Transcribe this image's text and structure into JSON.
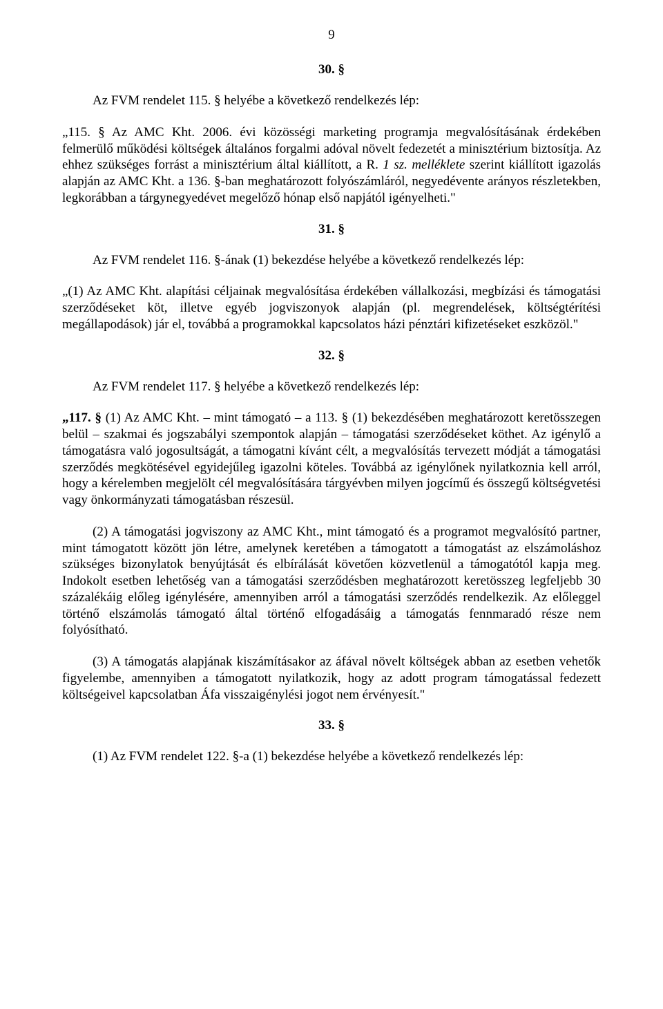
{
  "page_number": "9",
  "sections": {
    "s30": {
      "heading": "30. §",
      "intro": "Az FVM rendelet 115. § helyébe a következő rendelkezés lép:",
      "body_prefix": "„115. § Az AMC Kht. 2006. évi közösségi marketing programja megvalósításának érdekében felmerülő működési költségek általános forgalmi adóval növelt fedezetét a minisztérium biztosítja. Az ehhez szükséges forrást a minisztérium által kiállított, a R. ",
      "body_italic": "1 sz. melléklete",
      "body_suffix": " szerint kiállított igazolás alapján az AMC Kht. a 136. §-ban meghatározott folyószámláról, negyedévente arányos részletekben, legkorábban a tárgynegyedévet megelőző hónap első napjától igényelheti.\""
    },
    "s31": {
      "heading": "31. §",
      "intro": "Az FVM rendelet 116. §-ának (1) bekezdése helyébe a következő rendelkezés lép:",
      "body": "„(1) Az AMC Kht. alapítási céljainak megvalósítása érdekében vállalkozási, megbízási és támogatási szerződéseket köt, illetve egyéb jogviszonyok alapján (pl. megrendelések, költségtérítési megállapodások) jár el, továbbá a programokkal kapcsolatos házi pénztári kifizetéseket eszközöl.\""
    },
    "s32": {
      "heading": "32. §",
      "intro": "Az FVM rendelet 117. § helyébe a következő rendelkezés lép:",
      "p1_bold": "„117. §",
      "p1_rest": " (1) Az AMC Kht. – mint támogató – a 113. § (1) bekezdésében meghatározott keretösszegen belül – szakmai és jogszabályi szempontok alapján – támogatási szerződéseket köthet. Az igénylő a támogatásra való jogosultságát, a támogatni kívánt célt, a megvalósítás tervezett módját a támogatási szerződés megkötésével egyidejűleg igazolni köteles. Továbbá az igénylőnek nyilatkoznia kell arról, hogy a kérelemben megjelölt cél megvalósítására tárgyévben milyen jogcímű és összegű költségvetési vagy önkormányzati támogatásban részesül.",
      "p2": "(2) A támogatási jogviszony az AMC Kht., mint támogató és a programot megvalósító partner, mint támogatott között jön létre, amelynek keretében a támogatott a támogatást az elszámoláshoz szükséges bizonylatok benyújtását és elbírálását követően közvetlenül a támogatótól kapja meg. Indokolt esetben lehetőség van a támogatási szerződésben meghatározott keretösszeg legfeljebb 30 százalékáig előleg igénylésére, amennyiben arról a támogatási szerződés rendelkezik. Az előleggel történő elszámolás támogató által történő elfogadásáig a támogatás fennmaradó része nem folyósítható.",
      "p3": "(3) A támogatás alapjának kiszámításakor az áfával növelt költségek abban az esetben vehetők figyelembe, amennyiben a támogatott nyilatkozik, hogy az adott program támogatással fedezett költségeivel kapcsolatban Áfa visszaigénylési jogot nem érvényesít.\""
    },
    "s33": {
      "heading": "33. §",
      "intro": "(1) Az FVM rendelet 122. §-a (1) bekezdése helyébe a következő rendelkezés lép:"
    }
  }
}
